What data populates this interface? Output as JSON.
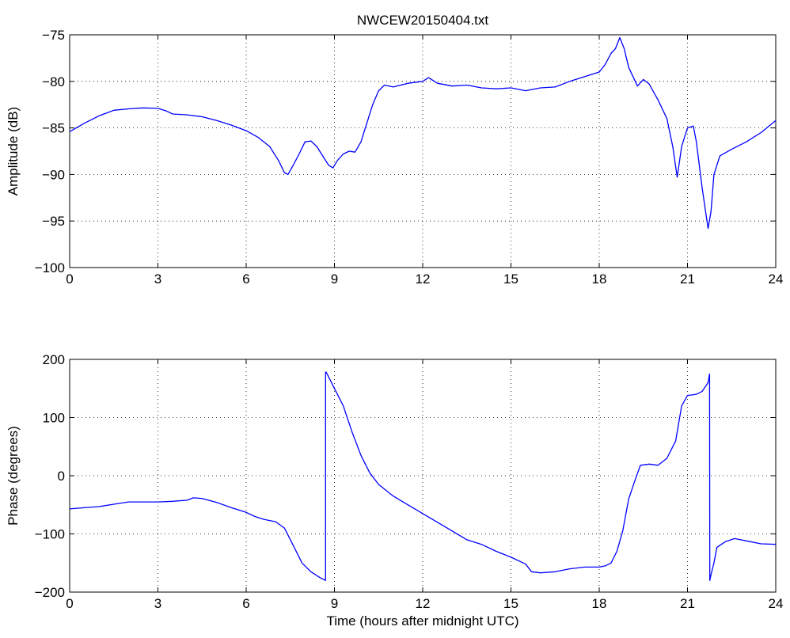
{
  "chart_data": [
    {
      "type": "line",
      "title": "NWCEW20150404.txt",
      "xlabel": "",
      "ylabel": "Amplitude (dB)",
      "xlim": [
        0,
        24
      ],
      "ylim": [
        -100,
        -75
      ],
      "xticks": [
        0,
        3,
        6,
        9,
        12,
        15,
        18,
        21,
        24
      ],
      "yticks": [
        -100,
        -95,
        -90,
        -85,
        -80,
        -75
      ],
      "grid": true,
      "line_color": "#0000ff",
      "series": [
        {
          "x": [
            0,
            0.5,
            1,
            1.5,
            2,
            2.5,
            3,
            3.3,
            3.5,
            4,
            4.5,
            5,
            5.5,
            6,
            6.4,
            6.8,
            7.1,
            7.3,
            7.42,
            7.6,
            7.8,
            8.0,
            8.2,
            8.4,
            8.6,
            8.8,
            8.95,
            9.1,
            9.3,
            9.5,
            9.7,
            9.9,
            10.1,
            10.3,
            10.5,
            10.7,
            11.0,
            11.5,
            12.0,
            12.2,
            12.5,
            13.0,
            13.5,
            14.0,
            14.5,
            15.0,
            15.5,
            16.0,
            16.5,
            17.0,
            17.5,
            18.0,
            18.2,
            18.4,
            18.55,
            18.7,
            18.85,
            19.0,
            19.3,
            19.5,
            19.7,
            20.0,
            20.3,
            20.5,
            20.65,
            20.8,
            21.0,
            21.2,
            21.3,
            21.5,
            21.7,
            21.8,
            21.9,
            22.1,
            22.5,
            23.0,
            23.5,
            24.0
          ],
          "y": [
            -85.4,
            -84.5,
            -83.7,
            -83.1,
            -82.95,
            -82.85,
            -82.9,
            -83.2,
            -83.5,
            -83.6,
            -83.8,
            -84.2,
            -84.7,
            -85.3,
            -86.0,
            -87.0,
            -88.5,
            -89.8,
            -90.0,
            -89.0,
            -87.8,
            -86.5,
            -86.4,
            -87.0,
            -88.0,
            -89.0,
            -89.3,
            -88.5,
            -87.8,
            -87.5,
            -87.6,
            -86.5,
            -84.5,
            -82.5,
            -81.0,
            -80.4,
            -80.6,
            -80.2,
            -80.0,
            -79.6,
            -80.2,
            -80.5,
            -80.4,
            -80.7,
            -80.8,
            -80.7,
            -81.0,
            -80.7,
            -80.6,
            -80.0,
            -79.5,
            -79.0,
            -78.2,
            -77.0,
            -76.5,
            -75.3,
            -76.5,
            -78.5,
            -80.5,
            -79.8,
            -80.3,
            -82.0,
            -84.0,
            -87.0,
            -90.3,
            -87.0,
            -85.0,
            -84.8,
            -86.5,
            -91.5,
            -95.8,
            -94.0,
            -90.0,
            -88.0,
            -87.3,
            -86.5,
            -85.5,
            -84.2
          ]
        }
      ]
    },
    {
      "type": "line",
      "title": "",
      "xlabel": "Time (hours after midnight UTC)",
      "ylabel": "Phase (degrees)",
      "xlim": [
        0,
        24
      ],
      "ylim": [
        -200,
        200
      ],
      "xticks": [
        0,
        3,
        6,
        9,
        12,
        15,
        18,
        21,
        24
      ],
      "yticks": [
        -200,
        -100,
        0,
        100,
        200
      ],
      "grid": true,
      "line_color": "#0000ff",
      "series": [
        {
          "x": [
            0,
            0.5,
            1,
            1.5,
            2,
            2.5,
            3,
            3.5,
            4.0,
            4.2,
            4.5,
            5.0,
            5.5,
            6.0,
            6.3,
            6.6,
            7.0,
            7.3,
            7.6,
            7.9,
            8.2,
            8.5,
            8.7,
            8.7,
            8.72,
            8.8,
            9.0,
            9.3,
            9.6,
            9.9,
            10.2,
            10.5,
            11.0,
            11.5,
            12.0,
            12.5,
            13.0,
            13.5,
            14.0,
            14.5,
            15.0,
            15.5,
            15.7,
            16.0,
            16.5,
            17.0,
            17.5,
            18.0,
            18.2,
            18.4,
            18.6,
            18.8,
            19.0,
            19.2,
            19.4,
            19.7,
            20.0,
            20.3,
            20.6,
            20.8,
            21.0,
            21.3,
            21.5,
            21.7,
            21.75,
            21.76,
            21.8,
            21.9,
            22.0,
            22.3,
            22.6,
            23.0,
            23.5,
            24.0
          ],
          "y": [
            -57,
            -55,
            -53,
            -49,
            -45,
            -45,
            -45,
            -44,
            -42,
            -38,
            -39,
            -46,
            -55,
            -63,
            -70,
            -75,
            -79,
            -90,
            -120,
            -150,
            -165,
            -175,
            -180,
            178,
            178,
            170,
            150,
            120,
            75,
            35,
            5,
            -15,
            -35,
            -50,
            -65,
            -80,
            -95,
            -110,
            -118,
            -130,
            -140,
            -152,
            -165,
            -167,
            -165,
            -160,
            -157,
            -157,
            -155,
            -150,
            -130,
            -95,
            -40,
            -10,
            18,
            20,
            18,
            30,
            60,
            120,
            138,
            140,
            145,
            160,
            175,
            -180,
            -170,
            -150,
            -123,
            -113,
            -108,
            -112,
            -117,
            -118
          ]
        }
      ]
    }
  ]
}
